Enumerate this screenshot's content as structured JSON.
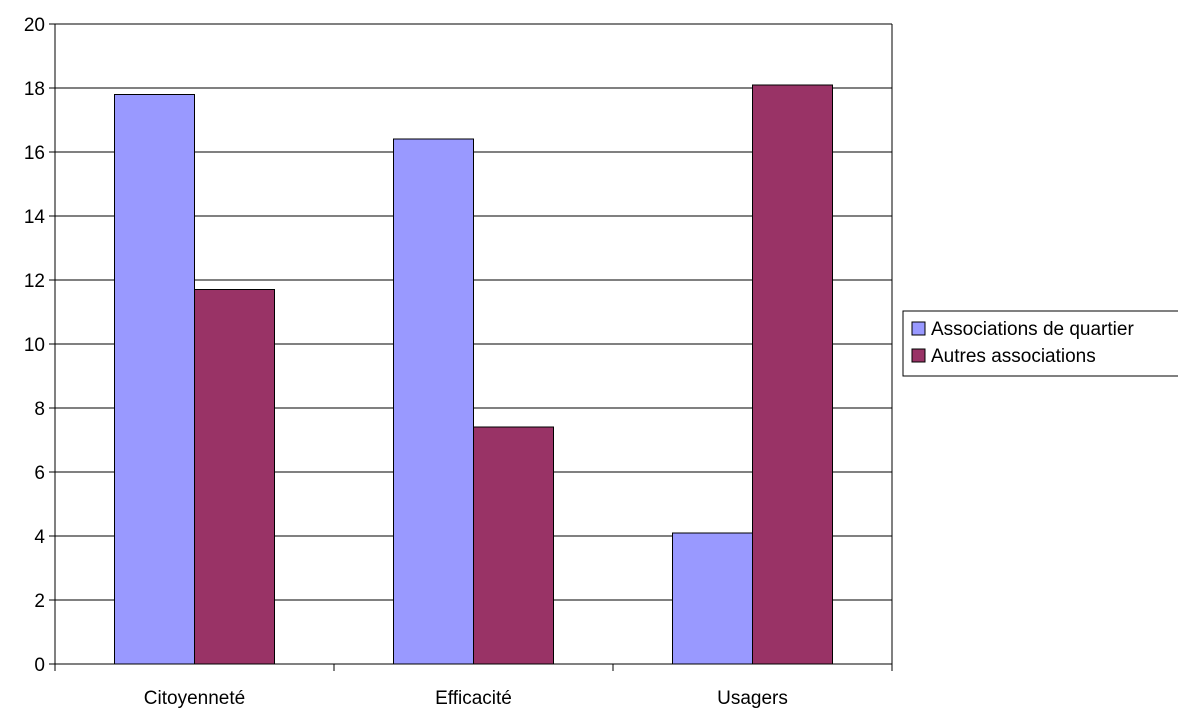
{
  "chart_data": {
    "type": "bar",
    "categories": [
      "Citoyenneté",
      "Efficacité",
      "Usagers"
    ],
    "series": [
      {
        "name": "Associations de quartier",
        "values": [
          17.8,
          16.4,
          4.1
        ],
        "color": "#9999ff"
      },
      {
        "name": "Autres associations",
        "values": [
          11.7,
          7.4,
          18.1
        ],
        "color": "#993366"
      }
    ],
    "ylim": [
      0,
      20
    ],
    "yticks": [
      0,
      2,
      4,
      6,
      8,
      10,
      12,
      14,
      16,
      18,
      20
    ],
    "grid": true,
    "legend_position": "right"
  }
}
